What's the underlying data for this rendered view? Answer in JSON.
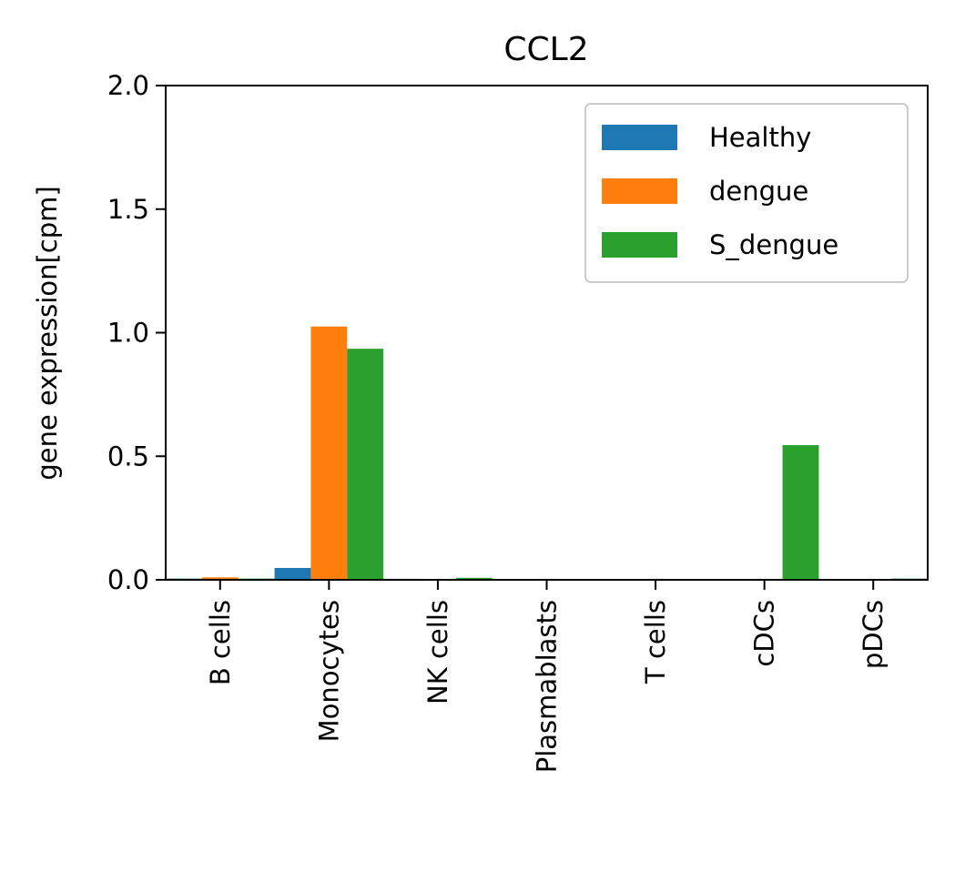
{
  "chart_data": {
    "type": "bar",
    "title": "CCL2",
    "xlabel": "",
    "ylabel": "gene expression[cpm]",
    "categories": [
      "B cells",
      "Monocytes",
      "NK cells",
      "Plasmablasts",
      "T cells",
      "cDCs",
      "pDCs"
    ],
    "series": [
      {
        "name": "Healthy",
        "color": "#1f77b4",
        "values": [
          0.005,
          0.048,
          0.004,
          0.0,
          0.0,
          0.0,
          0.0
        ]
      },
      {
        "name": "dengue",
        "color": "#ff7f0e",
        "values": [
          0.01,
          1.025,
          0.002,
          0.0,
          0.0,
          0.0,
          0.0
        ]
      },
      {
        "name": "S_dengue",
        "color": "#2ca02c",
        "values": [
          0.005,
          0.935,
          0.008,
          0.0,
          0.0,
          0.545,
          0.005
        ]
      }
    ],
    "ylim": [
      0,
      2.0
    ],
    "yticks": [
      0.0,
      0.5,
      1.0,
      1.5,
      2.0
    ],
    "ytick_labels": [
      "0.0",
      "0.5",
      "1.0",
      "1.5",
      "2.0"
    ],
    "legend": {
      "position": "top-right"
    },
    "grid": false
  }
}
